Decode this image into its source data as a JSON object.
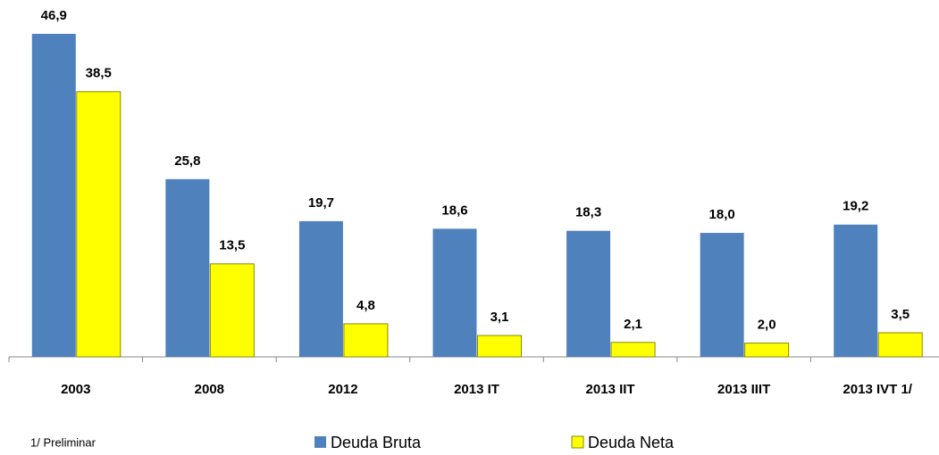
{
  "chart_data": {
    "type": "bar",
    "categories": [
      "2003",
      "2008",
      "2012",
      "2013 IT",
      "2013 IIT",
      "2013 IIIT",
      "2013 IVT 1/"
    ],
    "series": [
      {
        "name": "Deuda Bruta",
        "color": "#4f81bd",
        "values": [
          46.9,
          25.8,
          19.7,
          18.6,
          18.3,
          18.0,
          19.2
        ],
        "value_labels": [
          "46,9",
          "25,8",
          "19,7",
          "18,6",
          "18,3",
          "18,0",
          "19,2"
        ]
      },
      {
        "name": "Deuda Neta",
        "color": "#ffff00",
        "values": [
          38.5,
          13.5,
          4.8,
          3.1,
          2.1,
          2.0,
          3.5
        ],
        "value_labels": [
          "38,5",
          "13,5",
          "4,8",
          "3,1",
          "2,1",
          "2,0",
          "3,5"
        ]
      }
    ],
    "footnote": "1/ Preliminar",
    "legend": "bottom"
  }
}
